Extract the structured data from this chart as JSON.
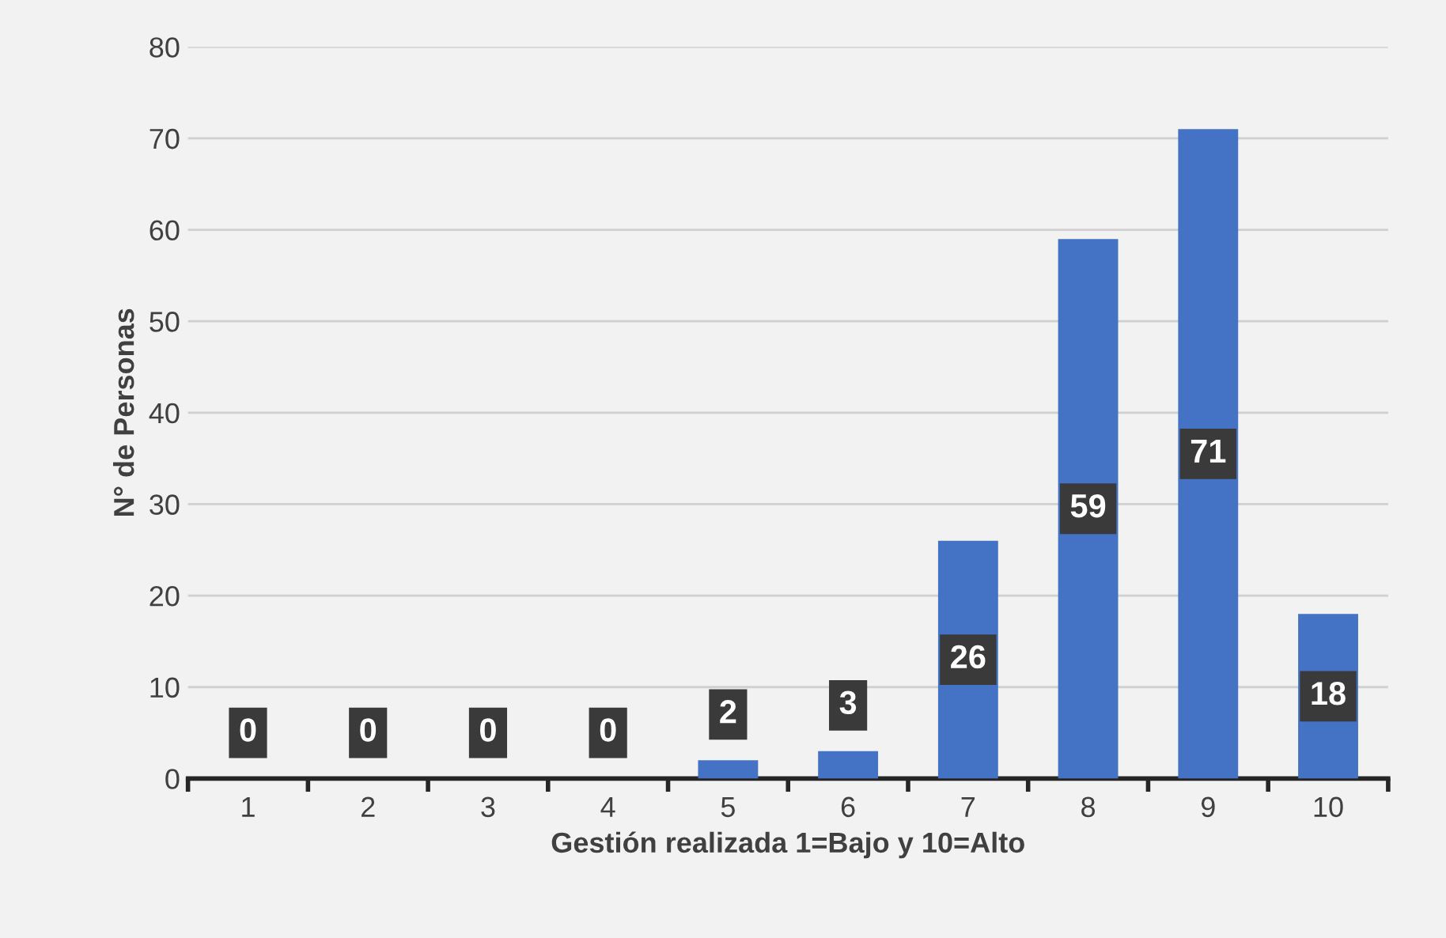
{
  "chart_data": {
    "type": "bar",
    "xlabel": "Gestión realizada 1=Bajo y 10=Alto",
    "ylabel": "N° de Personas",
    "categories": [
      "1",
      "2",
      "3",
      "4",
      "5",
      "6",
      "7",
      "8",
      "9",
      "10"
    ],
    "values": [
      0,
      0,
      0,
      0,
      2,
      3,
      26,
      59,
      71,
      18
    ],
    "color": "#4472c4",
    "ylim": [
      0,
      80
    ],
    "yticks": [
      0,
      10,
      20,
      30,
      40,
      50,
      60,
      70,
      80
    ],
    "grid": "y",
    "data_labels": true
  }
}
